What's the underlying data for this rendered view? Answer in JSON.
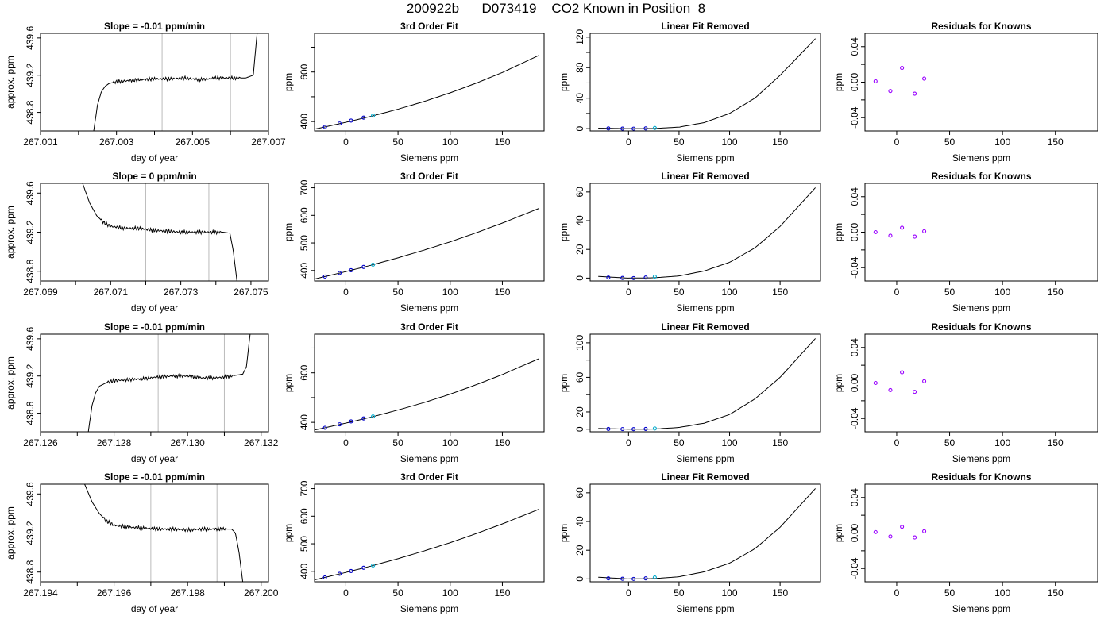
{
  "title": "200922b      D073419    CO2 Known in Position  8",
  "colors": {
    "frame": "#000000",
    "trace": "#000000",
    "vline": "#bbbbbb",
    "marker_blue": "#0000cc",
    "marker_purple": "#9900ff",
    "marker_cyan": "#00aacc",
    "marker_red": "#ff3333"
  },
  "chart_data": [
    {
      "type": "line",
      "title": "Slope =  -0.01  ppm/min",
      "xlabel": "day of year",
      "ylabel": "approx. ppm",
      "xlim": [
        267.001,
        267.007
      ],
      "ylim": [
        438.6,
        439.65
      ],
      "xticks": [
        267.001,
        267.002,
        267.003,
        267.004,
        267.005,
        267.006,
        267.007
      ],
      "xtick_labels": [
        "267.001",
        "",
        "267.003",
        "",
        "267.005",
        "",
        "267.007"
      ],
      "yticks": [
        438.8,
        439.2,
        439.6
      ],
      "ytick_labels": [
        "438.8",
        "439.2",
        "439.6"
      ],
      "vlines": [
        267.0042,
        267.006
      ],
      "x": [
        267.0024,
        267.0025,
        267.0026,
        267.0027,
        267.0028,
        267.003,
        267.0033,
        267.0036,
        267.004,
        267.0044,
        267.0048,
        267.0052,
        267.0056,
        267.006,
        267.0064,
        267.0066,
        267.0067
      ],
      "y": [
        438.6,
        438.88,
        439.02,
        439.08,
        439.11,
        439.13,
        439.14,
        439.15,
        439.16,
        439.16,
        439.17,
        439.15,
        439.17,
        439.17,
        439.17,
        439.2,
        439.65
      ]
    },
    {
      "type": "line",
      "title": "3rd Order Fit",
      "xlabel": "Siemens ppm",
      "ylabel": "ppm",
      "xlim": [
        -30,
        190
      ],
      "ylim": [
        362,
        756
      ],
      "xticks": [
        0,
        50,
        100,
        150
      ],
      "xtick_labels": [
        "0",
        "50",
        "100",
        "150"
      ],
      "yticks": [
        400,
        500,
        600,
        700
      ],
      "ytick_labels": [
        "400",
        "",
        "600",
        ""
      ],
      "curve": {
        "x": [
          -30,
          0,
          25,
          50,
          75,
          100,
          125,
          150,
          185
        ],
        "y": [
          369,
          397,
          422,
          450,
          481,
          516,
          555,
          598,
          667
        ]
      },
      "points": {
        "x": [
          -20,
          -6,
          5,
          17,
          26
        ],
        "y": [
          378,
          392,
          404,
          416,
          424
        ]
      }
    },
    {
      "type": "line",
      "title": "Linear Fit Removed",
      "xlabel": "Siemens ppm",
      "ylabel": "ppm",
      "xlim": [
        -38,
        190
      ],
      "ylim": [
        -3,
        125
      ],
      "xticks": [
        0,
        50,
        100,
        150
      ],
      "xtick_labels": [
        "0",
        "50",
        "100",
        "150"
      ],
      "yticks": [
        0,
        20,
        40,
        60,
        80,
        100,
        120
      ],
      "ytick_labels": [
        "0",
        "",
        "40",
        "",
        "80",
        "",
        "120"
      ],
      "curve": {
        "x": [
          -30,
          0,
          25,
          50,
          75,
          100,
          125,
          150,
          185
        ],
        "y": [
          0.6,
          0,
          0.1,
          2,
          8,
          20,
          40,
          70,
          118
        ]
      },
      "points": {
        "x": [
          -20,
          -6,
          5,
          17,
          26
        ],
        "y": [
          0.3,
          0.1,
          0,
          0.3,
          0.8
        ]
      }
    },
    {
      "type": "scatter",
      "title": "Residuals for Knowns",
      "xlabel": "Siemens ppm",
      "ylabel": "ppm",
      "xlim": [
        -30,
        190
      ],
      "ylim": [
        -0.055,
        0.055
      ],
      "xticks": [
        0,
        50,
        100,
        150
      ],
      "xtick_labels": [
        "0",
        "50",
        "100",
        "150"
      ],
      "yticks": [
        -0.04,
        -0.02,
        0,
        0.02,
        0.04
      ],
      "ytick_labels": [
        "-0.04",
        "",
        "0.00",
        "",
        "0.04"
      ],
      "points": {
        "x": [
          -20,
          -6,
          5,
          17,
          26
        ],
        "y": [
          0.001,
          -0.01,
          0.016,
          -0.013,
          0.004
        ]
      }
    },
    {
      "type": "line",
      "title": "Slope =  0  ppm/min",
      "xlabel": "day of year",
      "ylabel": "approx. ppm",
      "xlim": [
        267.069,
        267.0755
      ],
      "ylim": [
        438.7,
        439.7
      ],
      "xticks": [
        267.069,
        267.07,
        267.071,
        267.072,
        267.073,
        267.074,
        267.075
      ],
      "xtick_labels": [
        "267.069",
        "",
        "267.071",
        "",
        "267.073",
        "",
        "267.075"
      ],
      "yticks": [
        438.8,
        439.2,
        439.6
      ],
      "ytick_labels": [
        "438.8",
        "439.2",
        "439.6"
      ],
      "vlines": [
        267.072,
        267.0738
      ],
      "x": [
        267.0702,
        267.0704,
        267.0706,
        267.0708,
        267.071,
        267.0714,
        267.0718,
        267.0722,
        267.0726,
        267.073,
        267.0734,
        267.0738,
        267.0742,
        267.0744,
        267.0745,
        267.0746
      ],
      "y": [
        439.7,
        439.5,
        439.37,
        439.3,
        439.26,
        439.24,
        439.24,
        439.22,
        439.21,
        439.2,
        439.2,
        439.2,
        439.2,
        439.19,
        439.0,
        438.7
      ]
    },
    {
      "type": "line",
      "title": "3rd Order Fit",
      "xlabel": "Siemens ppm",
      "ylabel": "ppm",
      "xlim": [
        -30,
        190
      ],
      "ylim": [
        362,
        716
      ],
      "xticks": [
        0,
        50,
        100,
        150
      ],
      "xtick_labels": [
        "0",
        "50",
        "100",
        "150"
      ],
      "yticks": [
        400,
        500,
        600,
        700
      ],
      "ytick_labels": [
        "400",
        "500",
        "600",
        "700"
      ],
      "curve": {
        "x": [
          -30,
          0,
          25,
          50,
          75,
          100,
          125,
          150,
          185
        ],
        "y": [
          369,
          396,
          420,
          446,
          474,
          504,
          537,
          572,
          625
        ]
      },
      "points": {
        "x": [
          -20,
          -6,
          5,
          17,
          26
        ],
        "y": [
          378,
          391,
          401,
          413,
          421
        ]
      }
    },
    {
      "type": "line",
      "title": "Linear Fit Removed",
      "xlabel": "Siemens ppm",
      "ylabel": "ppm",
      "xlim": [
        -38,
        190
      ],
      "ylim": [
        -2,
        66
      ],
      "xticks": [
        0,
        50,
        100,
        150
      ],
      "xtick_labels": [
        "0",
        "50",
        "100",
        "150"
      ],
      "yticks": [
        0,
        20,
        40,
        60
      ],
      "ytick_labels": [
        "0",
        "20",
        "40",
        "60"
      ],
      "curve": {
        "x": [
          -30,
          0,
          25,
          50,
          75,
          100,
          125,
          150,
          185
        ],
        "y": [
          1.2,
          0,
          0.2,
          1.5,
          5,
          11,
          21,
          36,
          63
        ]
      },
      "points": {
        "x": [
          -20,
          -6,
          5,
          17,
          26
        ],
        "y": [
          0.4,
          0.1,
          0,
          0.4,
          1
        ]
      }
    },
    {
      "type": "scatter",
      "title": "Residuals for Knowns",
      "xlabel": "Siemens ppm",
      "ylabel": "ppm",
      "xlim": [
        -30,
        190
      ],
      "ylim": [
        -0.055,
        0.055
      ],
      "xticks": [
        0,
        50,
        100,
        150
      ],
      "xtick_labels": [
        "0",
        "50",
        "100",
        "150"
      ],
      "yticks": [
        -0.04,
        -0.02,
        0,
        0.02,
        0.04
      ],
      "ytick_labels": [
        "-0.04",
        "",
        "0.00",
        "",
        "0.04"
      ],
      "points": {
        "x": [
          -20,
          -6,
          5,
          17,
          26
        ],
        "y": [
          0,
          -0.004,
          0.005,
          -0.005,
          0.001
        ]
      }
    },
    {
      "type": "line",
      "title": "Slope =  -0.01  ppm/min",
      "xlabel": "day of year",
      "ylabel": "approx. ppm",
      "xlim": [
        267.126,
        267.1322
      ],
      "ylim": [
        438.6,
        439.65
      ],
      "xticks": [
        267.126,
        267.127,
        267.128,
        267.129,
        267.13,
        267.131,
        267.132
      ],
      "xtick_labels": [
        "267.126",
        "",
        "267.128",
        "",
        "267.130",
        "",
        "267.132"
      ],
      "vlines": [
        267.1292,
        267.131
      ],
      "yticks": [
        438.8,
        439.2,
        439.6
      ],
      "ytick_labels": [
        "438.8",
        "439.2",
        "439.6"
      ],
      "x": [
        267.1273,
        267.1274,
        267.1275,
        267.1276,
        267.1278,
        267.128,
        267.1284,
        267.1288,
        267.1292,
        267.1296,
        267.13,
        267.1304,
        267.1308,
        267.1312,
        267.1315,
        267.1316,
        267.1317
      ],
      "y": [
        438.6,
        438.88,
        439.02,
        439.09,
        439.13,
        439.15,
        439.16,
        439.17,
        439.19,
        439.2,
        439.2,
        439.18,
        439.18,
        439.2,
        439.22,
        439.3,
        439.65
      ]
    },
    {
      "type": "line",
      "title": "3rd Order Fit",
      "xlabel": "Siemens ppm",
      "ylabel": "ppm",
      "xlim": [
        -30,
        190
      ],
      "ylim": [
        362,
        756
      ],
      "xticks": [
        0,
        50,
        100,
        150
      ],
      "xtick_labels": [
        "0",
        "50",
        "100",
        "150"
      ],
      "yticks": [
        400,
        500,
        600,
        700
      ],
      "ytick_labels": [
        "400",
        "",
        "600",
        ""
      ],
      "curve": {
        "x": [
          -30,
          0,
          25,
          50,
          75,
          100,
          125,
          150,
          185
        ],
        "y": [
          369,
          397,
          422,
          450,
          480,
          514,
          552,
          593,
          657
        ]
      },
      "points": {
        "x": [
          -20,
          -6,
          5,
          17,
          26
        ],
        "y": [
          378,
          392,
          404,
          416,
          424
        ]
      }
    },
    {
      "type": "line",
      "title": "Linear Fit Removed",
      "xlabel": "Siemens ppm",
      "ylabel": "ppm",
      "xlim": [
        -38,
        190
      ],
      "ylim": [
        -3,
        110
      ],
      "xticks": [
        0,
        50,
        100,
        150
      ],
      "xtick_labels": [
        "0",
        "50",
        "100",
        "150"
      ],
      "yticks": [
        0,
        20,
        40,
        60,
        80,
        100
      ],
      "ytick_labels": [
        "0",
        "20",
        "",
        "60",
        "",
        "100"
      ],
      "curve": {
        "x": [
          -30,
          0,
          25,
          50,
          75,
          100,
          125,
          150,
          185
        ],
        "y": [
          0.8,
          0,
          0.1,
          2,
          7,
          17,
          35,
          60,
          105
        ]
      },
      "points": {
        "x": [
          -20,
          -6,
          5,
          17,
          26
        ],
        "y": [
          0.3,
          0.1,
          0,
          0.3,
          0.8
        ]
      }
    },
    {
      "type": "scatter",
      "title": "Residuals for Knowns",
      "xlabel": "Siemens ppm",
      "ylabel": "ppm",
      "xlim": [
        -30,
        190
      ],
      "ylim": [
        -0.055,
        0.055
      ],
      "xticks": [
        0,
        50,
        100,
        150
      ],
      "xtick_labels": [
        "0",
        "50",
        "100",
        "150"
      ],
      "yticks": [
        -0.04,
        -0.02,
        0,
        0.02,
        0.04
      ],
      "ytick_labels": [
        "-0.04",
        "",
        "0.00",
        "",
        "0.04"
      ],
      "points": {
        "x": [
          -20,
          -6,
          5,
          17,
          26
        ],
        "y": [
          0,
          -0.008,
          0.012,
          -0.01,
          0.002
        ]
      }
    },
    {
      "type": "line",
      "title": "Slope =  -0.01  ppm/min",
      "xlabel": "day of year",
      "ylabel": "approx. ppm",
      "xlim": [
        267.194,
        267.2002
      ],
      "ylim": [
        438.7,
        439.7
      ],
      "xticks": [
        267.194,
        267.195,
        267.196,
        267.197,
        267.198,
        267.199,
        267.2
      ],
      "xtick_labels": [
        "267.194",
        "",
        "267.196",
        "",
        "267.198",
        "",
        "267.200"
      ],
      "vlines": [
        267.197,
        267.1988
      ],
      "yticks": [
        438.8,
        439.2,
        439.6
      ],
      "ytick_labels": [
        "438.8",
        "439.2",
        "439.6"
      ],
      "x": [
        267.1952,
        267.1954,
        267.1956,
        267.1958,
        267.196,
        267.1964,
        267.1968,
        267.1972,
        267.1976,
        267.198,
        267.1984,
        267.1988,
        267.1992,
        267.1993,
        267.1994,
        267.1995
      ],
      "y": [
        439.7,
        439.52,
        439.4,
        439.32,
        439.28,
        439.26,
        439.25,
        439.24,
        439.24,
        439.23,
        439.24,
        439.24,
        439.24,
        439.2,
        439.0,
        438.7
      ]
    },
    {
      "type": "line",
      "title": "3rd Order Fit",
      "xlabel": "Siemens ppm",
      "ylabel": "ppm",
      "xlim": [
        -30,
        190
      ],
      "ylim": [
        362,
        716
      ],
      "xticks": [
        0,
        50,
        100,
        150
      ],
      "xtick_labels": [
        "0",
        "50",
        "100",
        "150"
      ],
      "yticks": [
        400,
        500,
        600,
        700
      ],
      "ytick_labels": [
        "400",
        "500",
        "600",
        "700"
      ],
      "curve": {
        "x": [
          -30,
          0,
          25,
          50,
          75,
          100,
          125,
          150,
          185
        ],
        "y": [
          369,
          396,
          420,
          446,
          474,
          504,
          537,
          572,
          625
        ]
      },
      "points": {
        "x": [
          -20,
          -6,
          5,
          17,
          26
        ],
        "y": [
          378,
          391,
          401,
          413,
          421
        ]
      }
    },
    {
      "type": "line",
      "title": "Linear Fit Removed",
      "xlabel": "Siemens ppm",
      "ylabel": "ppm",
      "xlim": [
        -38,
        190
      ],
      "ylim": [
        -2,
        66
      ],
      "xticks": [
        0,
        50,
        100,
        150
      ],
      "xtick_labels": [
        "0",
        "50",
        "100",
        "150"
      ],
      "yticks": [
        0,
        20,
        40,
        60
      ],
      "ytick_labels": [
        "0",
        "20",
        "40",
        "60"
      ],
      "curve": {
        "x": [
          -30,
          0,
          25,
          50,
          75,
          100,
          125,
          150,
          185
        ],
        "y": [
          1.2,
          0,
          0.2,
          1.5,
          5,
          11,
          21,
          36,
          63
        ]
      },
      "points": {
        "x": [
          -20,
          -6,
          5,
          17,
          26
        ],
        "y": [
          0.4,
          0.1,
          0,
          0.4,
          1
        ]
      }
    },
    {
      "type": "scatter",
      "title": "Residuals for Knowns",
      "xlabel": "Siemens ppm",
      "ylabel": "ppm",
      "xlim": [
        -30,
        190
      ],
      "ylim": [
        -0.055,
        0.055
      ],
      "xticks": [
        0,
        50,
        100,
        150
      ],
      "xtick_labels": [
        "0",
        "50",
        "100",
        "150"
      ],
      "yticks": [
        -0.04,
        -0.02,
        0,
        0.02,
        0.04
      ],
      "ytick_labels": [
        "-0.04",
        "",
        "0.00",
        "",
        "0.04"
      ],
      "points": {
        "x": [
          -20,
          -6,
          5,
          17,
          26
        ],
        "y": [
          0.001,
          -0.004,
          0.007,
          -0.005,
          0.002
        ]
      }
    }
  ]
}
